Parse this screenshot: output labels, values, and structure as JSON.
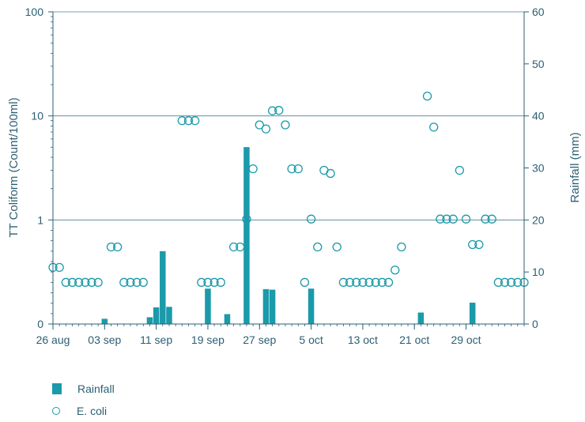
{
  "chart_data": {
    "type": "bar",
    "title": "",
    "x_tick_labels": [
      "26 aug",
      "03 sep",
      "11 sep",
      "19 sep",
      "27 sep",
      "5 oct",
      "13 oct",
      "21 oct",
      "29 oct"
    ],
    "x_tick_day": [
      0,
      8,
      16,
      24,
      32,
      40,
      48,
      56,
      64
    ],
    "x_range": [
      0,
      73
    ],
    "y_left": {
      "label": "TT Coliform (Count/100ml)",
      "tick_labels": [
        "0",
        "1",
        "10",
        "100"
      ],
      "tick_decades": [
        0,
        1,
        2,
        3
      ]
    },
    "y_right": {
      "label": "Rainfall (mm)",
      "ticks": [
        0,
        10,
        20,
        30,
        40,
        50,
        60
      ],
      "range": [
        0,
        60
      ]
    },
    "series": [
      {
        "name": "Rainfall",
        "axis": "right",
        "color": "#1b9aaa",
        "points": [
          [
            8,
            1
          ],
          [
            15,
            1.3
          ],
          [
            16,
            3.2
          ],
          [
            17,
            14
          ],
          [
            18,
            3.3
          ],
          [
            24,
            6.8
          ],
          [
            27,
            1.9
          ],
          [
            30,
            34
          ],
          [
            33,
            6.7
          ],
          [
            34,
            6.6
          ],
          [
            40,
            6.8
          ],
          [
            57,
            2.2
          ],
          [
            65,
            4.1
          ]
        ]
      },
      {
        "name": "E. coli",
        "axis": "left",
        "marker": "open-circle",
        "points": [
          [
            0,
            0.35
          ],
          [
            1,
            0.35
          ],
          [
            2,
            0.04
          ],
          [
            3,
            0.04
          ],
          [
            4,
            0.04
          ],
          [
            5,
            0.04
          ],
          [
            6,
            0.04
          ],
          [
            7,
            0.04
          ],
          [
            9,
            0.55
          ],
          [
            10,
            0.55
          ],
          [
            11,
            0.04
          ],
          [
            12,
            0.04
          ],
          [
            13,
            0.04
          ],
          [
            14,
            0.04
          ],
          [
            20,
            9
          ],
          [
            21,
            9
          ],
          [
            22,
            9
          ],
          [
            23,
            0.04
          ],
          [
            24,
            0.04
          ],
          [
            25,
            0.04
          ],
          [
            26,
            0.04
          ],
          [
            28,
            0.55
          ],
          [
            29,
            0.55
          ],
          [
            30,
            1.02
          ],
          [
            31,
            3.1
          ],
          [
            32,
            8.2
          ],
          [
            33,
            7.5
          ],
          [
            34,
            11.2
          ],
          [
            35,
            11.3
          ],
          [
            36,
            8.2
          ],
          [
            37,
            3.1
          ],
          [
            38,
            3.1
          ],
          [
            39,
            0.04
          ],
          [
            40,
            1.02
          ],
          [
            41,
            0.55
          ],
          [
            42,
            3.0
          ],
          [
            43,
            2.8
          ],
          [
            44,
            0.55
          ],
          [
            45,
            0.04
          ],
          [
            46,
            0.04
          ],
          [
            47,
            0.04
          ],
          [
            48,
            0.04
          ],
          [
            49,
            0.04
          ],
          [
            50,
            0.04
          ],
          [
            51,
            0.04
          ],
          [
            52,
            0.04
          ],
          [
            53,
            0.33
          ],
          [
            54,
            0.55
          ],
          [
            58,
            15.5
          ],
          [
            59,
            7.8
          ],
          [
            60,
            1.02
          ],
          [
            61,
            1.02
          ],
          [
            62,
            1.02
          ],
          [
            63,
            3.0
          ],
          [
            64,
            1.02
          ],
          [
            65,
            0.58
          ],
          [
            66,
            0.58
          ],
          [
            67,
            1.02
          ],
          [
            68,
            1.02
          ],
          [
            69,
            0.04
          ],
          [
            70,
            0.04
          ],
          [
            71,
            0.04
          ],
          [
            72,
            0.04
          ],
          [
            73,
            0.04
          ]
        ]
      }
    ],
    "gridlines": "horizontal at decades",
    "legend_placement": "bottom-left"
  },
  "legend": {
    "rainfall": "Rainfall",
    "ecoli": "E. coli"
  }
}
